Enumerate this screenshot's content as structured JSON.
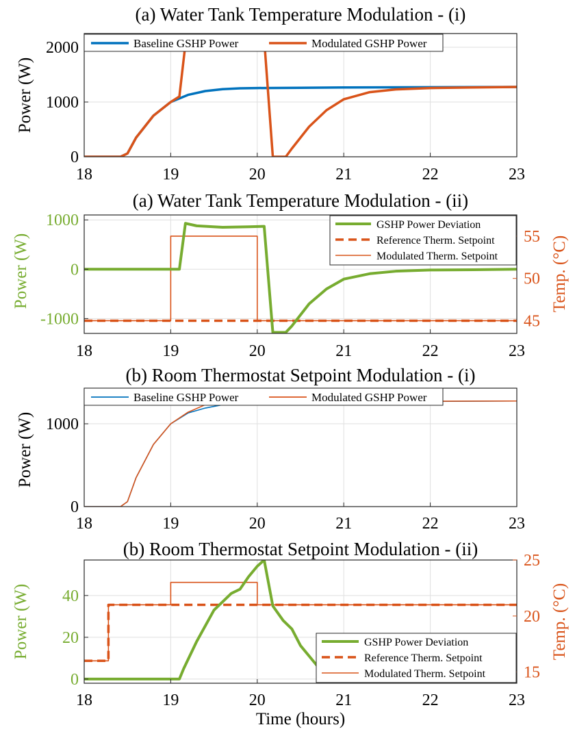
{
  "colors": {
    "blue": "#0072BD",
    "orange": "#D95319",
    "green": "#77AC30",
    "grid": "#DFDFDF",
    "axis": "#262626"
  },
  "xaxis_common": {
    "ticks": [
      18,
      19,
      20,
      21,
      22,
      23
    ],
    "label": "Time (hours)"
  },
  "chart_data": [
    {
      "type": "line",
      "title": "(a) Water Tank Temperature Modulation - (i)",
      "xlabel": "",
      "ylabel": "Power (W)",
      "xlim": [
        18,
        23
      ],
      "ylim": [
        0,
        2250
      ],
      "yticks": [
        0,
        1000,
        2000
      ],
      "grid": true,
      "legend": "top, horizontal",
      "series": [
        {
          "name": "Baseline GSHP Power",
          "color": "#0072BD",
          "x": [
            18,
            18.42,
            18.5,
            18.6,
            18.8,
            19.0,
            19.2,
            19.4,
            19.6,
            19.8,
            20.0,
            20.5,
            21.0,
            22.0,
            23.0
          ],
          "y": [
            0,
            0,
            60,
            350,
            750,
            1000,
            1130,
            1200,
            1235,
            1250,
            1255,
            1260,
            1265,
            1270,
            1275
          ]
        },
        {
          "name": "Modulated GSHP Power",
          "color": "#D95319",
          "x": [
            18,
            18.42,
            18.5,
            18.6,
            18.8,
            19.0,
            19.1,
            19.17,
            20.08,
            20.18,
            20.33,
            20.4,
            20.6,
            20.8,
            21.0,
            21.3,
            21.6,
            22.0,
            22.5,
            23.0
          ],
          "y": [
            0,
            0,
            60,
            350,
            750,
            1000,
            1100,
            2060,
            2150,
            0,
            0,
            150,
            550,
            850,
            1050,
            1180,
            1230,
            1255,
            1265,
            1275
          ]
        }
      ]
    },
    {
      "type": "line",
      "title": "(a) Water Tank Temperature Modulation - (ii)",
      "xlabel": "",
      "ylabel": "Power (W)",
      "ylabel_right": "Temp. (°C)",
      "xlim": [
        18,
        23
      ],
      "ylim": [
        -1300,
        1100
      ],
      "ylim_right": [
        43.5,
        57.5
      ],
      "yticks": [
        -1000,
        0,
        1000
      ],
      "yticks_right": [
        45,
        50,
        55
      ],
      "grid": true,
      "legend": "top-right",
      "series": [
        {
          "name": "GSHP Power Deviation",
          "axis": "left",
          "color": "#77AC30",
          "x": [
            18,
            19.1,
            19.17,
            19.3,
            19.6,
            19.9,
            20.08,
            20.18,
            20.33,
            20.4,
            20.6,
            20.8,
            21.0,
            21.3,
            21.6,
            22.0,
            22.5,
            23.0
          ],
          "y": [
            0,
            0,
            930,
            880,
            850,
            860,
            870,
            -1280,
            -1280,
            -1150,
            -700,
            -400,
            -200,
            -90,
            -40,
            -15,
            -10,
            0
          ]
        },
        {
          "name": "Reference Therm. Setpoint",
          "axis": "right",
          "color": "#D95319",
          "x": [
            18,
            23
          ],
          "y": [
            45,
            45
          ]
        },
        {
          "name": "Modulated Therm. Setpoint",
          "axis": "right",
          "color": "#D95319",
          "x": [
            18,
            19,
            19,
            20,
            20,
            23
          ],
          "y": [
            45,
            45,
            55,
            55,
            45,
            45
          ]
        }
      ]
    },
    {
      "type": "line",
      "title": "(b) Room Thermostat Setpoint Modulation - (i)",
      "xlabel": "",
      "ylabel": "Power (W)",
      "xlim": [
        18,
        23
      ],
      "ylim": [
        0,
        1430
      ],
      "yticks": [
        0,
        1000
      ],
      "grid": true,
      "legend": "top, horizontal",
      "series": [
        {
          "name": "Baseline GSHP Power",
          "color": "#0072BD",
          "x": [
            18,
            18.42,
            18.5,
            18.6,
            18.8,
            19.0,
            19.2,
            19.4,
            19.6,
            19.8,
            20.0,
            20.5,
            21.0,
            22.0,
            23.0
          ],
          "y": [
            0,
            0,
            60,
            350,
            750,
            1000,
            1130,
            1190,
            1230,
            1245,
            1255,
            1260,
            1265,
            1270,
            1275
          ]
        },
        {
          "name": "Modulated GSHP Power",
          "color": "#D95319",
          "x": [
            18,
            18.42,
            18.5,
            18.6,
            18.8,
            19.0,
            19.2,
            19.4,
            19.6,
            19.8,
            20.0,
            20.1,
            20.2,
            20.5,
            21.0,
            22.0,
            23.0
          ],
          "y": [
            0,
            0,
            60,
            350,
            750,
            1000,
            1140,
            1230,
            1280,
            1305,
            1315,
            1318,
            1290,
            1275,
            1270,
            1272,
            1275
          ]
        }
      ]
    },
    {
      "type": "line",
      "title": "(b) Room Thermostat Setpoint Modulation - (ii)",
      "xlabel": "Time (hours)",
      "ylabel": "Power (W)",
      "ylabel_right": "Temp. (°C)",
      "xlim": [
        18,
        23
      ],
      "ylim": [
        -2,
        57
      ],
      "ylim_right": [
        14,
        25
      ],
      "yticks": [
        0,
        20,
        40
      ],
      "yticks_right": [
        15,
        20,
        25
      ],
      "grid": true,
      "legend": "bottom-right",
      "series": [
        {
          "name": "GSHP Power Deviation",
          "axis": "left",
          "color": "#77AC30",
          "x": [
            18,
            19.1,
            19.15,
            19.3,
            19.5,
            19.7,
            19.8,
            19.9,
            20.0,
            20.08,
            20.18,
            20.3,
            20.4,
            20.5,
            20.7,
            21.0,
            21.3,
            21.6,
            22.0,
            22.5,
            23.0
          ],
          "y": [
            0,
            0,
            5,
            18,
            33,
            41,
            43,
            49,
            54,
            57,
            35,
            28,
            24,
            16,
            6,
            0,
            -1.5,
            -2,
            -2,
            -2,
            -2
          ]
        },
        {
          "name": "Reference Therm. Setpoint",
          "axis": "right",
          "color": "#D95319",
          "x": [
            18,
            18.28,
            18.28,
            23
          ],
          "y": [
            16,
            16,
            21,
            21
          ]
        },
        {
          "name": "Modulated Therm. Setpoint",
          "axis": "right",
          "color": "#D95319",
          "x": [
            18,
            18.28,
            18.28,
            19,
            19,
            20,
            20,
            23
          ],
          "y": [
            16,
            16,
            21,
            21,
            23,
            23,
            21,
            21
          ]
        }
      ]
    }
  ]
}
